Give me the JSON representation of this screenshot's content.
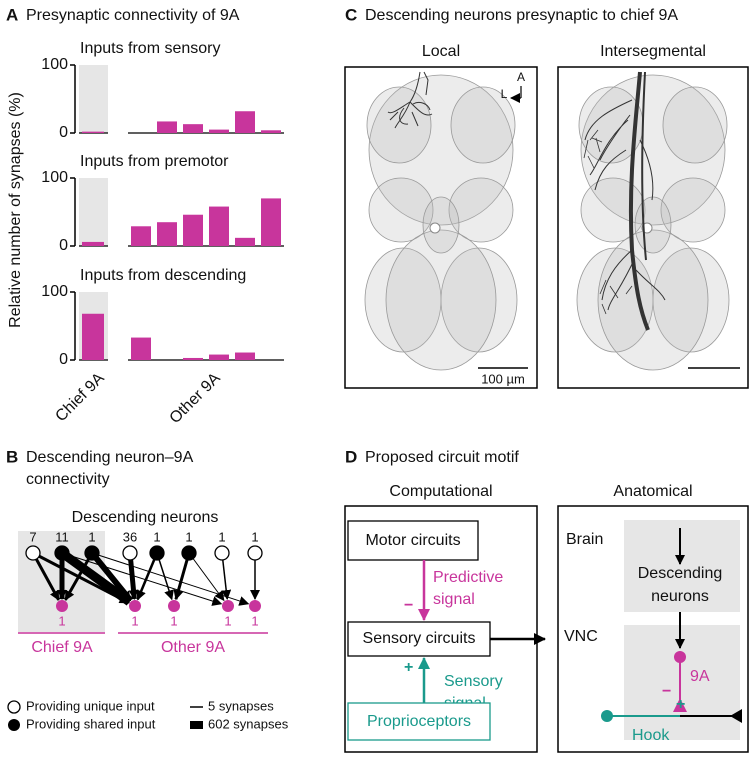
{
  "panel_a": {
    "label": "A",
    "heading": "Presynaptic connectivity of 9A",
    "y_label": "Relative number of synapses (%)",
    "groups": [
      "Chief 9A",
      "Other 9A"
    ]
  },
  "chart_data": [
    {
      "type": "bar",
      "title": "Inputs from sensory",
      "values": [
        2,
        0,
        17,
        13,
        5,
        32,
        4
      ],
      "color": "#c8359c",
      "ylim": [
        0,
        100
      ],
      "yticks": [
        0,
        100
      ]
    },
    {
      "type": "bar",
      "title": "Inputs from premotor",
      "values": [
        6,
        29,
        35,
        46,
        58,
        12,
        70
      ],
      "color": "#c8359c",
      "ylim": [
        0,
        100
      ],
      "yticks": [
        0,
        100
      ]
    },
    {
      "type": "bar",
      "title": "Inputs from descending",
      "values": [
        68,
        33,
        0,
        3,
        8,
        11,
        0
      ],
      "color": "#c8359c",
      "ylim": [
        0,
        100
      ],
      "yticks": [
        0,
        100
      ]
    }
  ],
  "panel_b": {
    "label": "B",
    "heading_lines": [
      "Descending neuron–9A",
      "connectivity"
    ],
    "top_label": "Descending neurons",
    "inputs": [
      {
        "count": 7,
        "kind": "unique"
      },
      {
        "count": 11,
        "kind": "shared"
      },
      {
        "count": 1,
        "kind": "shared"
      },
      {
        "count": 36,
        "kind": "unique"
      },
      {
        "count": 1,
        "kind": "shared"
      },
      {
        "count": 1,
        "kind": "shared"
      },
      {
        "count": 1,
        "kind": "unique"
      },
      {
        "count": 1,
        "kind": "unique"
      }
    ],
    "targets": [
      1,
      1,
      1,
      1,
      1
    ],
    "groups": [
      "Chief 9A",
      "Other 9A"
    ],
    "legend": {
      "unique": "Providing unique input",
      "shared": "Providing shared input",
      "thin": "5 synapses",
      "thick": "602 synapses"
    }
  },
  "panel_c": {
    "label": "C",
    "heading": "Descending neurons presynaptic to chief 9A",
    "local": "Local",
    "intersegmental": "Intersegmental",
    "axis_a": "A",
    "axis_l": "L",
    "scale": "100 µm"
  },
  "panel_d": {
    "label": "D",
    "heading": "Proposed circuit motif",
    "computational": "Computational",
    "anatomical": "Anatomical",
    "motor": "Motor circuits",
    "predictive": [
      "Predictive",
      "signal"
    ],
    "minus": "−",
    "sensory_circuits": "Sensory circuits",
    "plus": "+",
    "sensory_signal": [
      "Sensory",
      "signal"
    ],
    "proprioceptors": "Proprioceptors",
    "brain": "Brain",
    "descending": [
      "Descending",
      "neurons"
    ],
    "vnc": "VNC",
    "nine_a": "9A",
    "hook": "Hook"
  }
}
